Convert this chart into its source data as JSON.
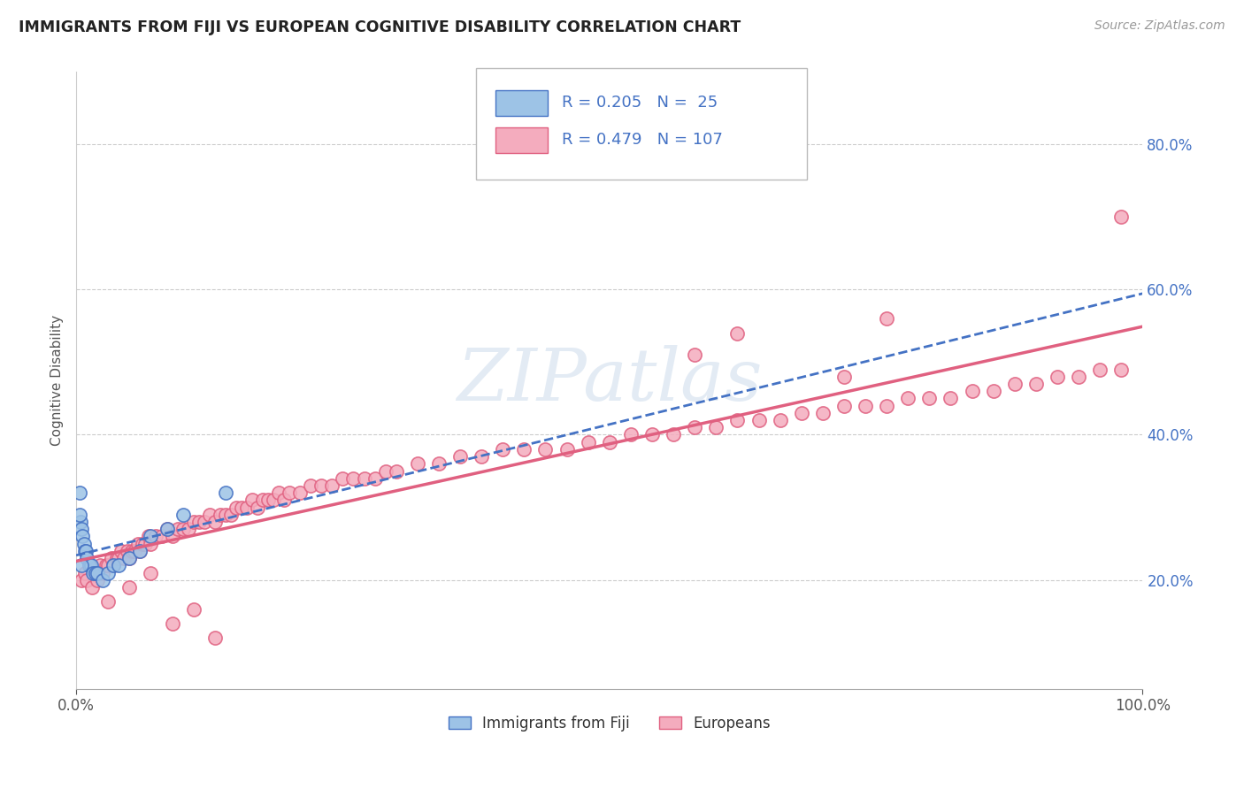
{
  "title": "IMMIGRANTS FROM FIJI VS EUROPEAN COGNITIVE DISABILITY CORRELATION CHART",
  "source": "Source: ZipAtlas.com",
  "ylabel": "Cognitive Disability",
  "xlim": [
    0.0,
    1.0
  ],
  "ylim": [
    0.05,
    0.9
  ],
  "x_tick_labels": [
    "0.0%",
    "100.0%"
  ],
  "y_tick_labels": [
    "20.0%",
    "40.0%",
    "60.0%",
    "80.0%"
  ],
  "y_ticks": [
    0.2,
    0.4,
    0.6,
    0.8
  ],
  "fiji_color": "#9dc3e6",
  "fiji_line_color": "#4472c4",
  "european_color": "#f4acbe",
  "european_line_color": "#e06080",
  "fiji_R": 0.205,
  "fiji_N": 25,
  "european_R": 0.479,
  "european_N": 107,
  "legend_labels": [
    "Immigrants from Fiji",
    "Europeans"
  ],
  "fiji_scatter_x": [
    0.003,
    0.004,
    0.005,
    0.006,
    0.007,
    0.008,
    0.009,
    0.01,
    0.012,
    0.014,
    0.016,
    0.018,
    0.02,
    0.025,
    0.03,
    0.035,
    0.04,
    0.05,
    0.06,
    0.07,
    0.085,
    0.1,
    0.14,
    0.003,
    0.005
  ],
  "fiji_scatter_y": [
    0.32,
    0.28,
    0.27,
    0.26,
    0.25,
    0.24,
    0.24,
    0.23,
    0.22,
    0.22,
    0.21,
    0.21,
    0.21,
    0.2,
    0.21,
    0.22,
    0.22,
    0.23,
    0.24,
    0.26,
    0.27,
    0.29,
    0.32,
    0.29,
    0.22
  ],
  "european_scatter_x": [
    0.005,
    0.008,
    0.01,
    0.012,
    0.015,
    0.018,
    0.02,
    0.022,
    0.025,
    0.028,
    0.03,
    0.033,
    0.035,
    0.038,
    0.04,
    0.042,
    0.045,
    0.048,
    0.05,
    0.052,
    0.055,
    0.058,
    0.06,
    0.062,
    0.065,
    0.068,
    0.07,
    0.075,
    0.08,
    0.085,
    0.09,
    0.095,
    0.1,
    0.105,
    0.11,
    0.115,
    0.12,
    0.125,
    0.13,
    0.135,
    0.14,
    0.145,
    0.15,
    0.155,
    0.16,
    0.165,
    0.17,
    0.175,
    0.18,
    0.185,
    0.19,
    0.195,
    0.2,
    0.21,
    0.22,
    0.23,
    0.24,
    0.25,
    0.26,
    0.27,
    0.28,
    0.29,
    0.3,
    0.32,
    0.34,
    0.36,
    0.38,
    0.4,
    0.42,
    0.44,
    0.46,
    0.48,
    0.5,
    0.52,
    0.54,
    0.56,
    0.58,
    0.6,
    0.62,
    0.64,
    0.66,
    0.68,
    0.7,
    0.72,
    0.74,
    0.76,
    0.78,
    0.8,
    0.82,
    0.84,
    0.86,
    0.88,
    0.9,
    0.92,
    0.94,
    0.96,
    0.98,
    0.03,
    0.05,
    0.07,
    0.09,
    0.11,
    0.13,
    0.58,
    0.62,
    0.72,
    0.76,
    0.98
  ],
  "european_scatter_y": [
    0.2,
    0.21,
    0.2,
    0.22,
    0.19,
    0.21,
    0.2,
    0.22,
    0.21,
    0.22,
    0.22,
    0.23,
    0.22,
    0.23,
    0.23,
    0.24,
    0.23,
    0.24,
    0.23,
    0.24,
    0.24,
    0.25,
    0.24,
    0.25,
    0.25,
    0.26,
    0.25,
    0.26,
    0.26,
    0.27,
    0.26,
    0.27,
    0.27,
    0.27,
    0.28,
    0.28,
    0.28,
    0.29,
    0.28,
    0.29,
    0.29,
    0.29,
    0.3,
    0.3,
    0.3,
    0.31,
    0.3,
    0.31,
    0.31,
    0.31,
    0.32,
    0.31,
    0.32,
    0.32,
    0.33,
    0.33,
    0.33,
    0.34,
    0.34,
    0.34,
    0.34,
    0.35,
    0.35,
    0.36,
    0.36,
    0.37,
    0.37,
    0.38,
    0.38,
    0.38,
    0.38,
    0.39,
    0.39,
    0.4,
    0.4,
    0.4,
    0.41,
    0.41,
    0.42,
    0.42,
    0.42,
    0.43,
    0.43,
    0.44,
    0.44,
    0.44,
    0.45,
    0.45,
    0.45,
    0.46,
    0.46,
    0.47,
    0.47,
    0.48,
    0.48,
    0.49,
    0.49,
    0.17,
    0.19,
    0.21,
    0.14,
    0.16,
    0.12,
    0.51,
    0.54,
    0.48,
    0.56,
    0.7
  ]
}
